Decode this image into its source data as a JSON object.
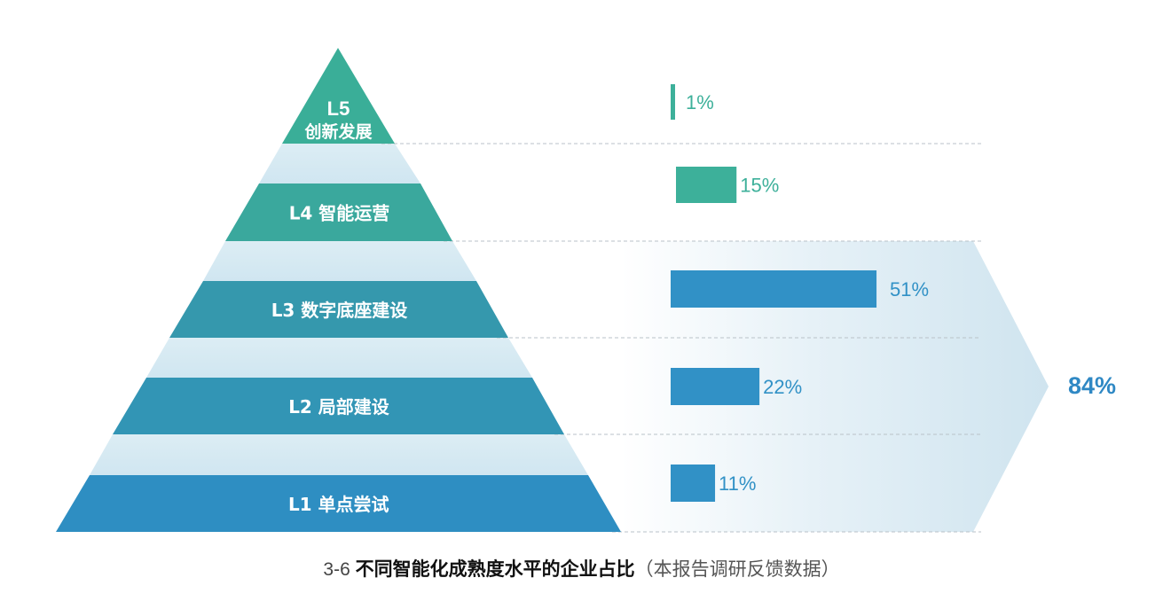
{
  "chart_data": {
    "type": "bar",
    "title": "不同智能化成熟度水平的企业占比",
    "figure_number": "3-6",
    "source_note": "（本报告调研反馈数据）",
    "levels": [
      {
        "code": "L5",
        "name": "创新发展",
        "value": 1,
        "label": "1%"
      },
      {
        "code": "L4",
        "name": "智能运营",
        "value": 15,
        "label": "15%"
      },
      {
        "code": "L3",
        "name": "数字底座建设",
        "value": 51,
        "label": "51%"
      },
      {
        "code": "L2",
        "name": "局部建设",
        "value": 22,
        "label": "22%"
      },
      {
        "code": "L1",
        "name": "单点尝试",
        "value": 11,
        "label": "11%"
      }
    ],
    "total": {
      "value": 84,
      "label": "84%",
      "covers": [
        "L1",
        "L2",
        "L3"
      ]
    },
    "xlim": [
      0,
      100
    ]
  },
  "colors": {
    "upper": "#3aae98",
    "l4": "#3aa89d",
    "l3": "#3598ad",
    "l2": "#3295b5",
    "l1": "#2e8ec2",
    "bar_upper": "#3db09a",
    "bar_lower": "#3191c6",
    "total": "#2f88c4",
    "band": "#d2e8f2"
  }
}
